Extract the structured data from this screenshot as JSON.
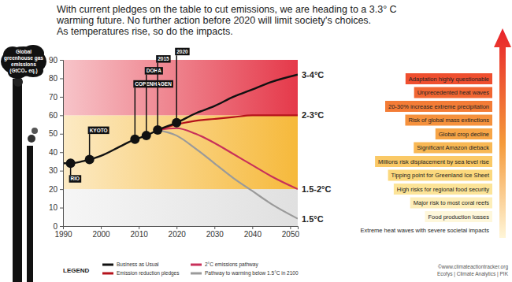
{
  "chart_data": {
    "type": "line",
    "title": [
      "With current pledges on the table to cut emissions, we are heading to a 3.3° C",
      "warming future. No further action before 2020 will limit society's choices.",
      "As temperatures rise, so do the impacts."
    ],
    "y_label": [
      "Global",
      "greenhouse gas",
      "emissions",
      "(GtCO₂ eq.)"
    ],
    "xlim": [
      1990,
      2052
    ],
    "xticks": [
      1990,
      2000,
      2010,
      2020,
      2030,
      2040,
      2050
    ],
    "ylim": [
      0,
      90
    ],
    "yticks": [
      0,
      10,
      20,
      30,
      40,
      50,
      60,
      70,
      80,
      90
    ],
    "grid": false,
    "legend": "bottom",
    "legend_title": "LEGEND",
    "bands": [
      {
        "from": 0,
        "to": 20,
        "color": "#e0e0e0"
      },
      {
        "from": 20,
        "to": 60,
        "color": "#f6b93b"
      },
      {
        "from": 60,
        "to": 90,
        "color": "#e5394a"
      }
    ],
    "series": [
      {
        "name": "Business as Usual",
        "color": "#111111",
        "end_label": "3-4°C",
        "x": [
          1990,
          1992,
          1995,
          1997,
          2000,
          2005,
          2009,
          2012,
          2015,
          2020,
          2025,
          2030,
          2035,
          2040,
          2045,
          2052
        ],
        "values": [
          34,
          34,
          35,
          36,
          38,
          43,
          47,
          49,
          52,
          56,
          61,
          65,
          70,
          74,
          78,
          82
        ]
      },
      {
        "name": "Emission reduction pledges",
        "color": "#b5121b",
        "end_label": "2-3°C",
        "x": [
          2015,
          2020,
          2025,
          2030,
          2035,
          2040,
          2045,
          2052
        ],
        "values": [
          52,
          55,
          57,
          58,
          59,
          60,
          60,
          60
        ]
      },
      {
        "name": "2°C emissions pathway",
        "color": "#c8305a",
        "end_label": "1.5-2°C",
        "x": [
          2015,
          2020,
          2025,
          2030,
          2035,
          2040,
          2045,
          2052
        ],
        "values": [
          52,
          53,
          50,
          45,
          39,
          33,
          27,
          20
        ]
      },
      {
        "name": "Pathway to warming below 1.5°C in 2100",
        "color": "#9a9a9a",
        "end_label": "1.5°C",
        "x": [
          2015,
          2020,
          2025,
          2030,
          2035,
          2040,
          2045,
          2052
        ],
        "values": [
          52,
          49,
          42,
          34,
          26,
          19,
          12,
          4
        ]
      }
    ],
    "events": [
      {
        "label": "RIO",
        "x": 1992,
        "y": 34
      },
      {
        "label": "KYOTO",
        "x": 1997,
        "y": 36
      },
      {
        "label": "COPENHAGEN",
        "x": 2009,
        "y": 47
      },
      {
        "label": "DOHA",
        "x": 2012,
        "y": 49
      },
      {
        "label": "2015",
        "x": 2015,
        "y": 52
      },
      {
        "label": "2020",
        "x": 2020,
        "y": 56
      }
    ],
    "impacts": [
      "Adaptation highly questionable",
      "Unprecedented heat waves",
      "20-30% increase extreme precipitation",
      "Risk of global mass extinctions",
      "Global crop decline",
      "Significant Amazon dieback",
      "Millions risk displacement by sea level rise",
      "Tipping point for Greenland Ice Sheet",
      "High risks for regional food security",
      "Major risk to most coral reefs",
      "Food production losses",
      "Extreme heat waves with severe societal impacts"
    ],
    "source": [
      "©www.climateactiontracker.org",
      "Ecofys | Climate Analytics | PIK"
    ]
  }
}
